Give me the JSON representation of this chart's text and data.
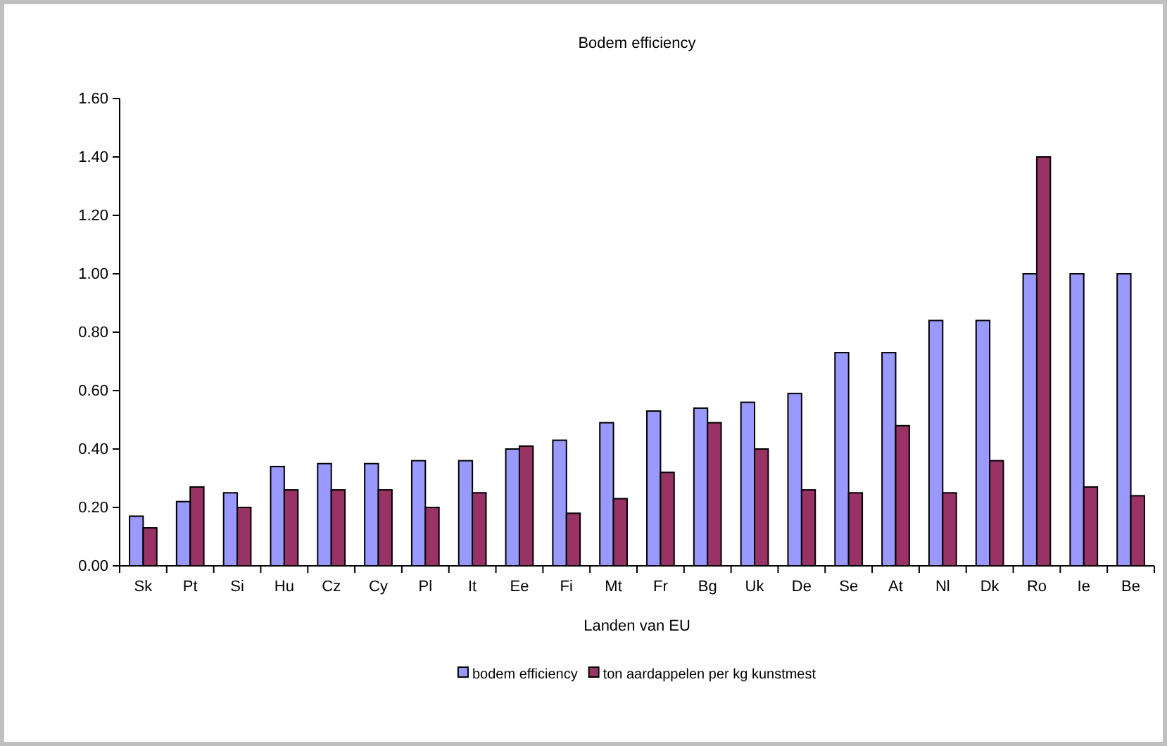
{
  "chart_data": {
    "type": "bar",
    "title": "Bodem efficiency",
    "xlabel": "Landen van EU",
    "categories": [
      "Sk",
      "Pt",
      "Si",
      "Hu",
      "Cz",
      "Cy",
      "Pl",
      "It",
      "Ee",
      "Fi",
      "Mt",
      "Fr",
      "Bg",
      "Uk",
      "De",
      "Se",
      "At",
      "Nl",
      "Dk",
      "Ro",
      "Ie",
      "Be"
    ],
    "series": [
      {
        "name": "bodem efficiency",
        "color": "#9999ff",
        "values": [
          0.17,
          0.22,
          0.25,
          0.34,
          0.35,
          0.35,
          0.36,
          0.36,
          0.4,
          0.43,
          0.49,
          0.53,
          0.54,
          0.56,
          0.59,
          0.73,
          0.73,
          0.84,
          0.84,
          1.0,
          1.0,
          1.0
        ]
      },
      {
        "name": "ton aardappelen per kg kunstmest",
        "color": "#993366",
        "values": [
          0.13,
          0.27,
          0.2,
          0.26,
          0.26,
          0.26,
          0.2,
          0.25,
          0.41,
          0.18,
          0.23,
          0.32,
          0.49,
          0.4,
          0.26,
          0.25,
          0.48,
          0.25,
          0.36,
          1.4,
          0.27,
          0.24
        ]
      }
    ],
    "ylim": [
      0,
      1.6
    ],
    "yticks": [
      {
        "value": 0,
        "label": "0.00"
      },
      {
        "value": 0.2,
        "label": "0.20"
      },
      {
        "value": 0.4,
        "label": "0.40"
      },
      {
        "value": 0.6,
        "label": "0.60"
      },
      {
        "value": 0.8,
        "label": "0.80"
      },
      {
        "value": 1.0,
        "label": "1.00"
      },
      {
        "value": 1.2,
        "label": "1.20"
      },
      {
        "value": 1.4,
        "label": "1.40"
      },
      {
        "value": 1.6,
        "label": "1.60"
      }
    ],
    "grid": false,
    "legend": "bottom"
  }
}
